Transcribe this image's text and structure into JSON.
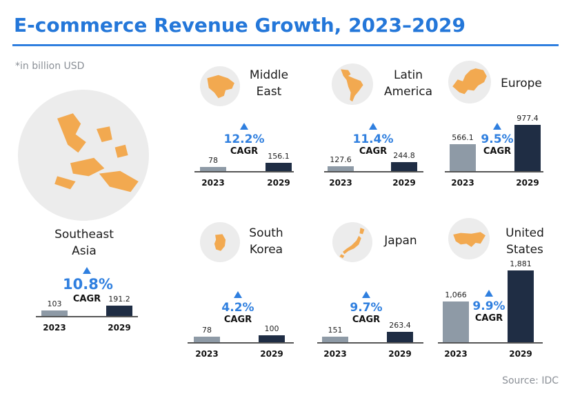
{
  "title": "E-commerce Revenue Growth, 2023–2029",
  "note": "*in billion USD",
  "source": "Source: IDC",
  "colors": {
    "accent": "#2f7fdf",
    "bar_2023": "#8e9aa6",
    "bar_2029": "#1f2d44",
    "map_land": "#f2a950",
    "map_globe": "#ececec"
  },
  "chart_data": [
    {
      "type": "bar",
      "region": [
        "Southeast",
        "Asia"
      ],
      "categories": [
        "2023",
        "2029"
      ],
      "values": [
        103,
        191.2
      ],
      "value_labels": [
        "103",
        "191.2"
      ],
      "cagr": "10.8%",
      "cagr_label": "CAGR",
      "unit": "billion USD"
    },
    {
      "type": "bar",
      "region": [
        "Middle",
        "East"
      ],
      "categories": [
        "2023",
        "2029"
      ],
      "values": [
        78,
        156.1
      ],
      "value_labels": [
        "78",
        "156.1"
      ],
      "cagr": "12.2%",
      "cagr_label": "CAGR",
      "unit": "billion USD"
    },
    {
      "type": "bar",
      "region": [
        "Latin",
        "America"
      ],
      "categories": [
        "2023",
        "2029"
      ],
      "values": [
        127.6,
        244.8
      ],
      "value_labels": [
        "127.6",
        "244.8"
      ],
      "cagr": "11.4%",
      "cagr_label": "CAGR",
      "unit": "billion USD"
    },
    {
      "type": "bar",
      "region": [
        "Europe"
      ],
      "categories": [
        "2023",
        "2029"
      ],
      "values": [
        566.1,
        977.4
      ],
      "value_labels": [
        "566.1",
        "977.4"
      ],
      "cagr": "9.5%",
      "cagr_label": "CAGR",
      "unit": "billion USD"
    },
    {
      "type": "bar",
      "region": [
        "South",
        "Korea"
      ],
      "categories": [
        "2023",
        "2029"
      ],
      "values": [
        78,
        100
      ],
      "value_labels": [
        "78",
        "100"
      ],
      "cagr": "4.2%",
      "cagr_label": "CAGR",
      "unit": "billion USD"
    },
    {
      "type": "bar",
      "region": [
        "Japan"
      ],
      "categories": [
        "2023",
        "2029"
      ],
      "values": [
        151,
        263.4
      ],
      "value_labels": [
        "151",
        "263.4"
      ],
      "cagr": "9.7%",
      "cagr_label": "CAGR",
      "unit": "billion USD"
    },
    {
      "type": "bar",
      "region": [
        "United",
        "States"
      ],
      "categories": [
        "2023",
        "2029"
      ],
      "values": [
        1066,
        1881
      ],
      "value_labels": [
        "1,066",
        "1,881"
      ],
      "cagr": "9.9%",
      "cagr_label": "CAGR",
      "unit": "billion USD"
    }
  ]
}
